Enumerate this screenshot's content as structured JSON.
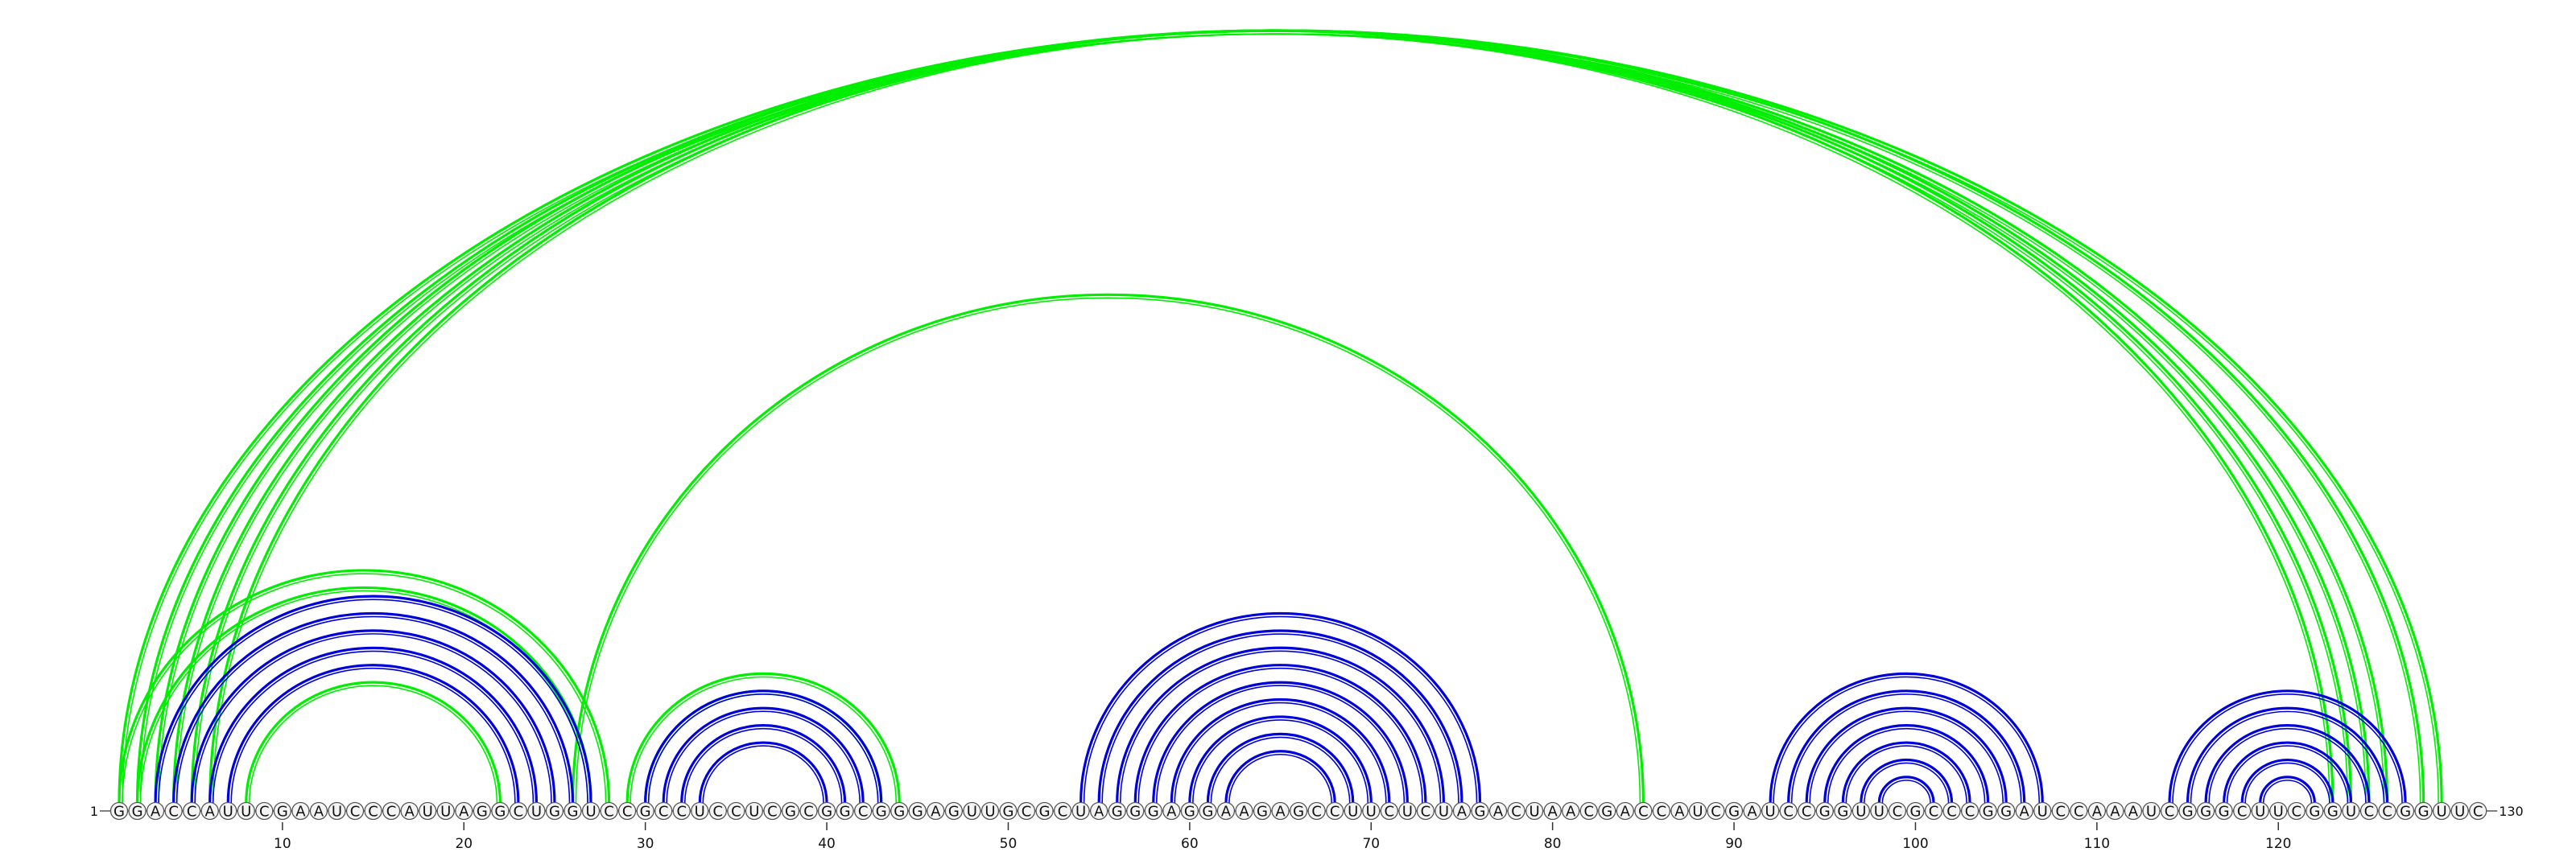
{
  "sequence": "GGACCAUUCGAAUCCCAUUAGGCUGGUCCGCCUCCUCGCGGCGGGAGUUGCGCUAGGGAGGAAGAGCCUUCUCUAGACUAACGACCAUCGAUCCGGUUCGCCCGGAUCCAAAUCGGGCUUCGGUCCGGUUC",
  "start_label": "1",
  "end_label": "130",
  "tick_positions": [
    10,
    20,
    30,
    40,
    50,
    60,
    70,
    80,
    90,
    100,
    110,
    120
  ],
  "colors": {
    "structure_a": "#0000dd",
    "structure_b": "#00ee00",
    "nucleotide_stroke": "#555555"
  },
  "structure_a_pairs": [
    [
      3,
      27
    ],
    [
      4,
      26
    ],
    [
      5,
      25
    ],
    [
      6,
      24
    ],
    [
      7,
      23
    ],
    [
      30,
      43
    ],
    [
      31,
      42
    ],
    [
      32,
      41
    ],
    [
      33,
      40
    ],
    [
      54,
      76
    ],
    [
      55,
      75
    ],
    [
      56,
      74
    ],
    [
      57,
      73
    ],
    [
      58,
      72
    ],
    [
      59,
      71
    ],
    [
      60,
      70
    ],
    [
      61,
      69
    ],
    [
      62,
      68
    ],
    [
      92,
      107
    ],
    [
      93,
      106
    ],
    [
      94,
      105
    ],
    [
      95,
      104
    ],
    [
      96,
      103
    ],
    [
      97,
      102
    ],
    [
      98,
      101
    ],
    [
      114,
      127
    ],
    [
      115,
      126
    ],
    [
      116,
      125
    ],
    [
      117,
      124
    ],
    [
      118,
      123
    ],
    [
      119,
      122
    ]
  ],
  "structure_b_pairs": [
    [
      1,
      129
    ],
    [
      2,
      128
    ],
    [
      3,
      126
    ],
    [
      4,
      125
    ],
    [
      5,
      124
    ],
    [
      6,
      123
    ],
    [
      1,
      28
    ],
    [
      2,
      27
    ],
    [
      8,
      22
    ],
    [
      26,
      85
    ],
    [
      29,
      44
    ],
    [
      30,
      43
    ]
  ]
}
